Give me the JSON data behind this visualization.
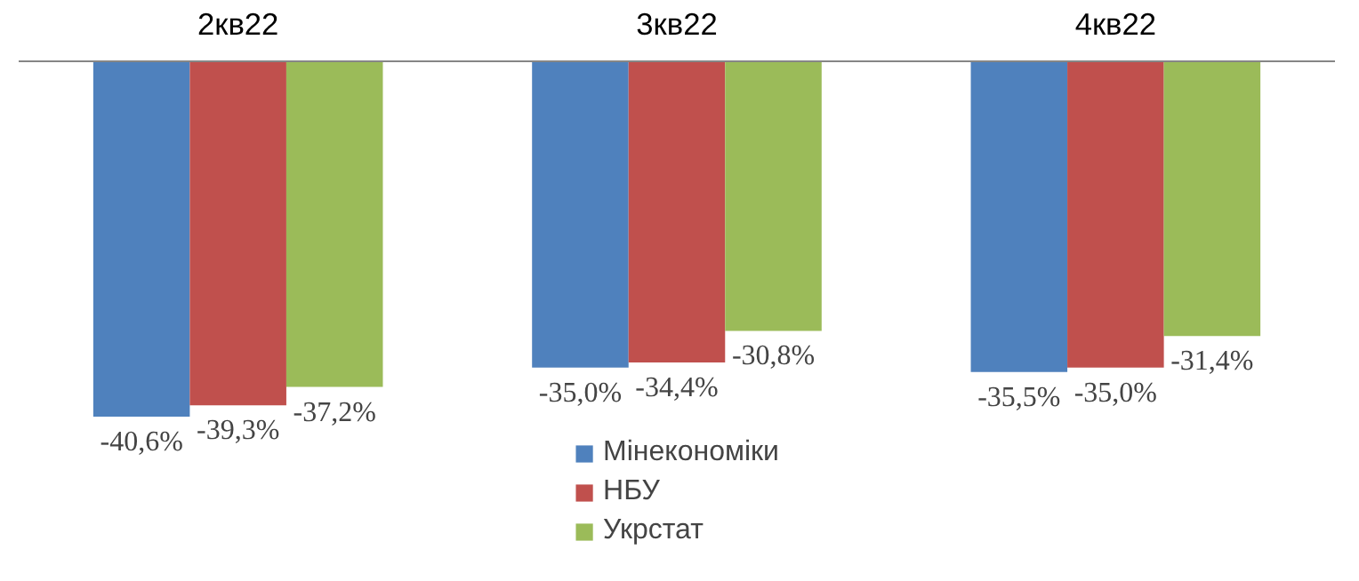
{
  "chart_data": {
    "type": "bar",
    "categories": [
      "2кв22",
      "3кв22",
      "4кв22"
    ],
    "series": [
      {
        "name": "Мінекономіки",
        "color": "#4f81bd",
        "values": [
          -40.6,
          -35.0,
          -35.5
        ],
        "value_labels": [
          "-40,6%",
          "-35,0%",
          "-35,5%"
        ]
      },
      {
        "name": "НБУ",
        "color": "#c0504d",
        "values": [
          -39.3,
          -34.4,
          -35.0
        ],
        "value_labels": [
          "-39,3%",
          "-34,4%",
          "-35,0%"
        ]
      },
      {
        "name": "Укрстат",
        "color": "#9bbb59",
        "values": [
          -37.2,
          -30.8,
          -31.4
        ],
        "value_labels": [
          "-37,2%",
          "-30,8%",
          "-31,4%"
        ]
      }
    ],
    "grid": false,
    "legend": "bottom"
  }
}
